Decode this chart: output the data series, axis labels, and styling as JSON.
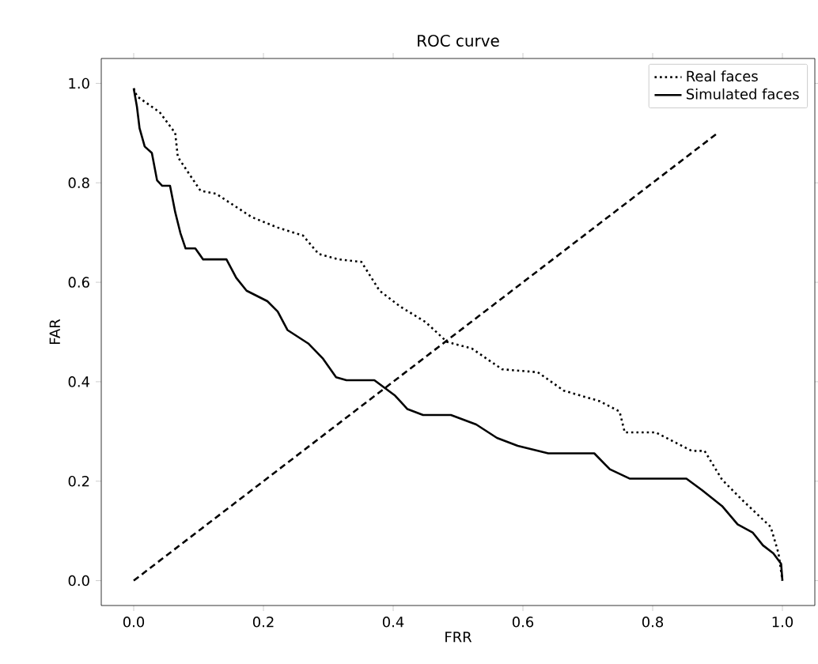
{
  "chart_data": {
    "type": "line",
    "title": "ROC curve",
    "xlabel": "FRR",
    "ylabel": "FAR",
    "xlim": [
      -0.05,
      1.05
    ],
    "ylim": [
      -0.05,
      1.05
    ],
    "xticks": [
      {
        "value": 0,
        "label": "0.0"
      },
      {
        "value": 0.2,
        "label": "0.2"
      },
      {
        "value": 0.4,
        "label": "0.4"
      },
      {
        "value": 0.6,
        "label": "0.6"
      },
      {
        "value": 0.8,
        "label": "0.8"
      },
      {
        "value": 1,
        "label": "1.0"
      }
    ],
    "yticks": [
      {
        "value": 0,
        "label": "0.0"
      },
      {
        "value": 0.2,
        "label": "0.2"
      },
      {
        "value": 0.4,
        "label": "0.4"
      },
      {
        "value": 0.6,
        "label": "0.6"
      },
      {
        "value": 0.8,
        "label": "0.8"
      },
      {
        "value": 1,
        "label": "1.0"
      }
    ],
    "legend": "top right",
    "series": [
      {
        "name": "Real faces",
        "color": "#000000",
        "line_style": "dotted",
        "x": [
          0,
          0.005,
          0.04,
          0.064,
          0.068,
          0.103,
          0.127,
          0.182,
          0.222,
          0.261,
          0.285,
          0.316,
          0.351,
          0.379,
          0.411,
          0.45,
          0.483,
          0.521,
          0.568,
          0.623,
          0.663,
          0.718,
          0.749,
          0.757,
          0.805,
          0.86,
          0.88,
          0.907,
          0.939,
          0.982,
          0.994,
          1.0
        ],
        "values": [
          0.99,
          0.974,
          0.942,
          0.9,
          0.852,
          0.784,
          0.778,
          0.731,
          0.71,
          0.694,
          0.657,
          0.646,
          0.641,
          0.583,
          0.551,
          0.52,
          0.48,
          0.467,
          0.425,
          0.419,
          0.382,
          0.361,
          0.34,
          0.298,
          0.298,
          0.261,
          0.261,
          0.203,
          0.161,
          0.108,
          0.055,
          0.0
        ]
      },
      {
        "name": "Simulated faces",
        "color": "#000000",
        "line_style": "solid",
        "x": [
          0,
          0.005,
          0.009,
          0.017,
          0.028,
          0.036,
          0.044,
          0.056,
          0.064,
          0.072,
          0.08,
          0.095,
          0.107,
          0.143,
          0.158,
          0.174,
          0.206,
          0.222,
          0.237,
          0.269,
          0.292,
          0.312,
          0.328,
          0.371,
          0.403,
          0.422,
          0.446,
          0.489,
          0.528,
          0.56,
          0.592,
          0.639,
          0.71,
          0.734,
          0.765,
          0.852,
          0.876,
          0.907,
          0.931,
          0.954,
          0.97,
          0.986,
          0.998,
          1.0
        ],
        "values": [
          0.99,
          0.953,
          0.91,
          0.873,
          0.86,
          0.805,
          0.794,
          0.794,
          0.741,
          0.699,
          0.668,
          0.668,
          0.646,
          0.646,
          0.609,
          0.583,
          0.562,
          0.541,
          0.504,
          0.477,
          0.446,
          0.409,
          0.403,
          0.403,
          0.372,
          0.345,
          0.333,
          0.333,
          0.314,
          0.287,
          0.271,
          0.256,
          0.256,
          0.224,
          0.205,
          0.205,
          0.182,
          0.15,
          0.113,
          0.097,
          0.071,
          0.055,
          0.034,
          0.0
        ]
      },
      {
        "color": "#000000",
        "line_style": "dashed",
        "x": [
          0,
          0.9
        ],
        "values": [
          0,
          0.9
        ]
      }
    ]
  }
}
